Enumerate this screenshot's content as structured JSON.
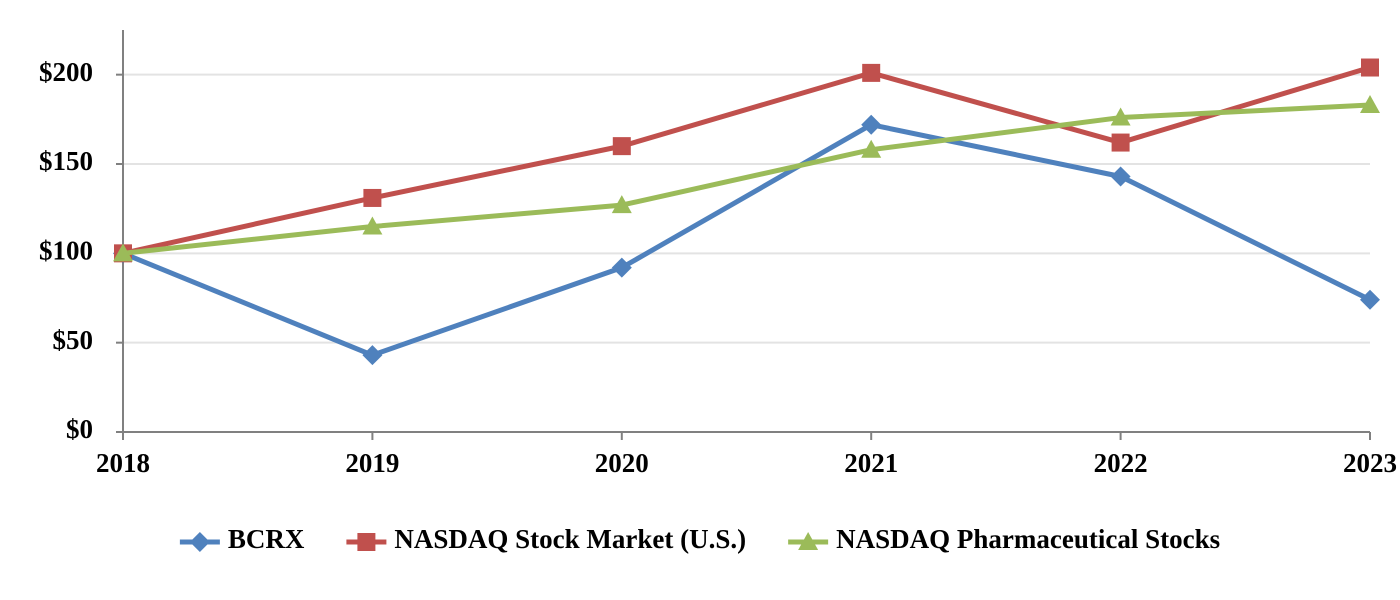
{
  "chart_data": {
    "type": "line",
    "categories": [
      "2018",
      "2019",
      "2020",
      "2021",
      "2022",
      "2023"
    ],
    "series": [
      {
        "name": "BCRX",
        "color": "#4f81bd",
        "marker": "diamond",
        "values": [
          100,
          43,
          92,
          172,
          143,
          74
        ]
      },
      {
        "name": "NASDAQ Stock Market (U.S.)",
        "color": "#c0504d",
        "marker": "square",
        "values": [
          100,
          131,
          160,
          201,
          162,
          204
        ]
      },
      {
        "name": "NASDAQ Pharmaceutical Stocks",
        "color": "#9bbb59",
        "marker": "triangle",
        "values": [
          100,
          115,
          127,
          158,
          176,
          183
        ]
      }
    ],
    "ylim": [
      0,
      225
    ],
    "yticks": [
      {
        "value": 0,
        "label": "$0"
      },
      {
        "value": 50,
        "label": "$50"
      },
      {
        "value": 100,
        "label": "$100"
      },
      {
        "value": 150,
        "label": "$150"
      },
      {
        "value": 200,
        "label": "$200"
      }
    ],
    "grid": true,
    "legend": "bottom"
  }
}
